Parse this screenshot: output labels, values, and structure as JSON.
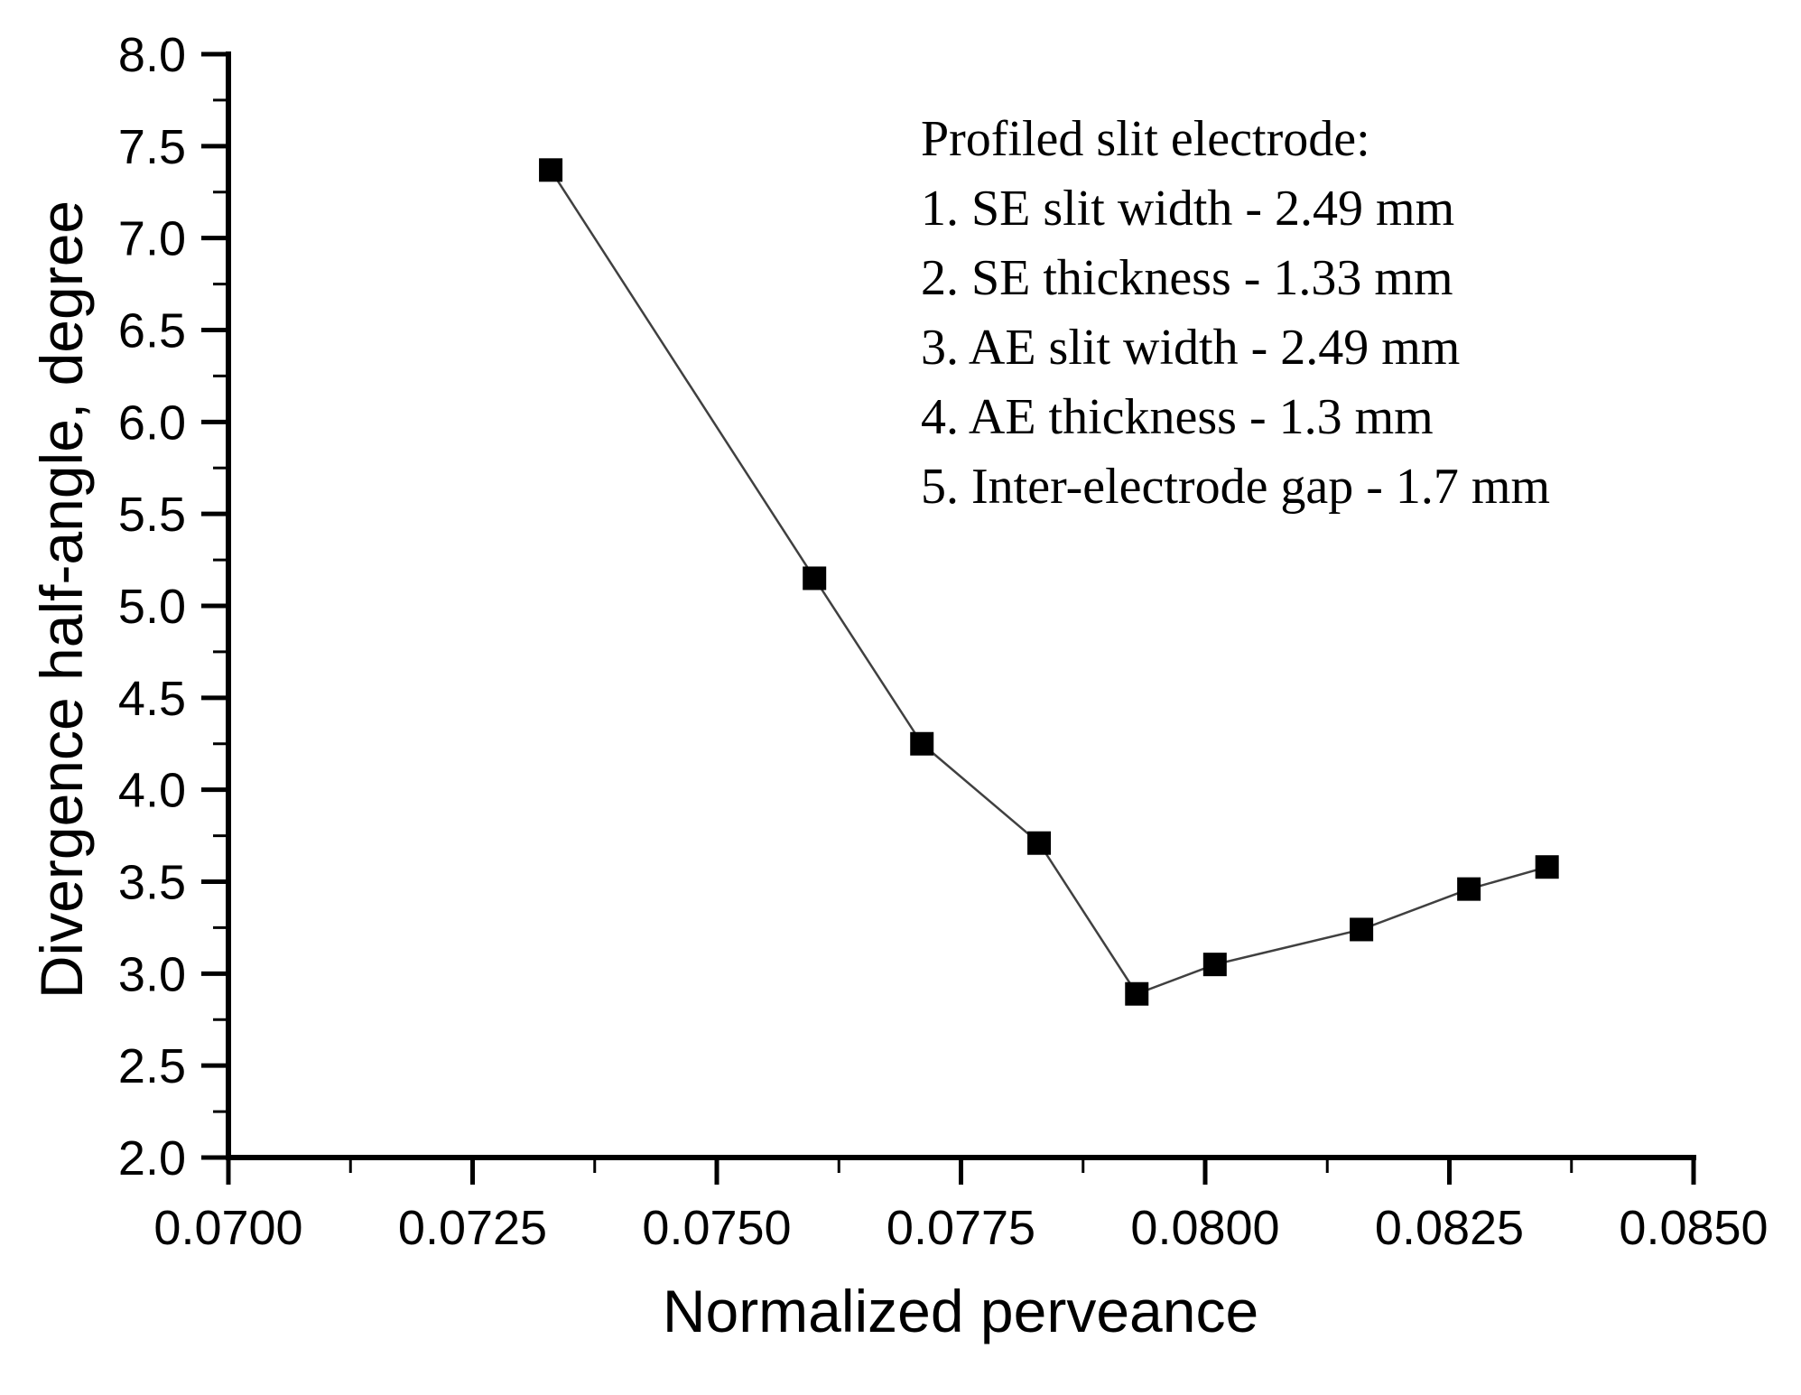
{
  "chart_data": {
    "type": "line",
    "title": "",
    "xlabel": "Normalized perveance",
    "ylabel": "Divergence half-angle, degree",
    "xlim": [
      0.07,
      0.085
    ],
    "ylim": [
      2.0,
      8.0
    ],
    "x_major_step": 0.0025,
    "x_minor_step": 0.00125,
    "y_major_step": 0.5,
    "y_minor_step": 0.25,
    "x_tick_labels": [
      "0.0700",
      "0.0725",
      "0.0750",
      "0.0775",
      "0.0800",
      "0.0825",
      "0.0850"
    ],
    "y_tick_labels": [
      "2.0",
      "2.5",
      "3.0",
      "3.5",
      "4.0",
      "4.5",
      "5.0",
      "5.5",
      "6.0",
      "6.5",
      "7.0",
      "7.5",
      "8.0"
    ],
    "grid": false,
    "legend_position": "none",
    "marker": "filled-square",
    "series": [
      {
        "name": "divergence-half-angle",
        "points": [
          [
            0.0733,
            7.37
          ],
          [
            0.076,
            5.15
          ],
          [
            0.0771,
            4.25
          ],
          [
            0.0783,
            3.71
          ],
          [
            0.0793,
            2.89
          ],
          [
            0.0801,
            3.05
          ],
          [
            0.0816,
            3.24
          ],
          [
            0.0827,
            3.46
          ],
          [
            0.0835,
            3.58
          ]
        ]
      }
    ]
  },
  "annotation": {
    "title": "Profiled slit electrode:",
    "lines": [
      "1. SE slit width - 2.49 mm",
      "2. SE thickness - 1.33 mm",
      "3. AE slit width - 2.49 mm",
      "4. AE thickness - 1.3 mm",
      "5. Inter-electrode gap - 1.7 mm"
    ]
  },
  "colors": {
    "foreground": "#000000",
    "background": "#ffffff",
    "series_line": "#404040",
    "marker_fill": "#000000"
  }
}
